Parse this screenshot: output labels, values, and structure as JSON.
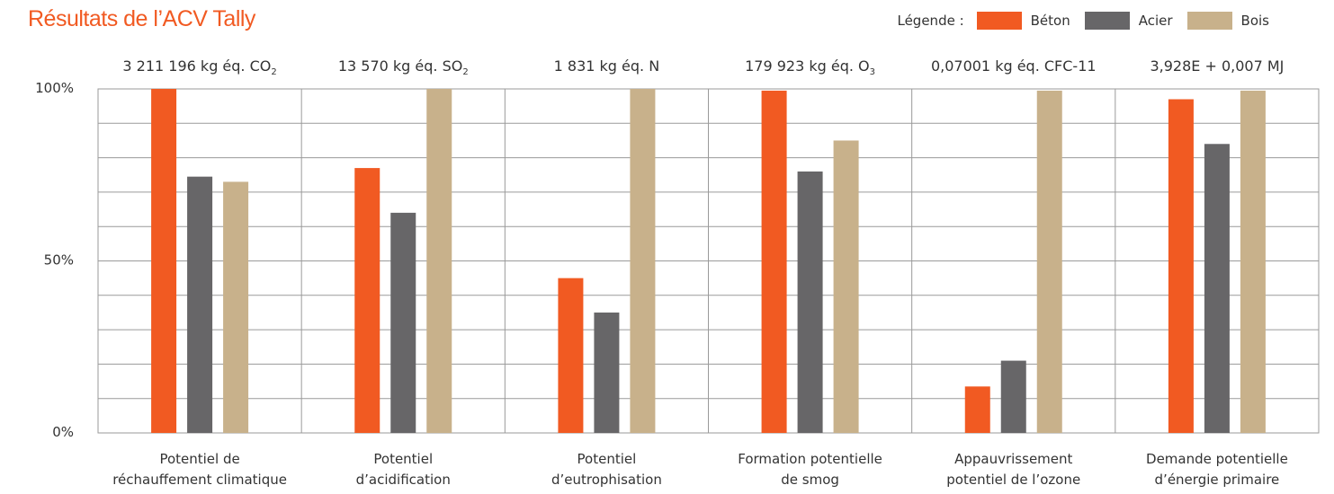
{
  "chart_data": {
    "type": "bar",
    "title": "Résultats de l’ACV Tally",
    "legend_label": "Légende :",
    "legend_position": "top-right",
    "yticks": [
      "100%",
      "50%",
      "0%"
    ],
    "ylim": [
      0,
      100
    ],
    "grid": true,
    "categories": [
      [
        "Potentiel de",
        "réchauffement climatique"
      ],
      [
        "Potentiel",
        "d’acidification"
      ],
      [
        "Potentiel",
        "d’eutrophisation"
      ],
      [
        "Formation potentielle",
        "de smog"
      ],
      [
        "Appauvrissement",
        "potentiel de l’ozone"
      ],
      [
        "Demande potentielle",
        "d’énergie primaire"
      ]
    ],
    "top_labels": [
      {
        "text": "3 211 196 kg éq. CO",
        "sub": "2"
      },
      {
        "text": "13 570 kg éq. SO",
        "sub": "2"
      },
      {
        "text": "1 831 kg éq. N",
        "sub": ""
      },
      {
        "text": "179 923 kg éq. O",
        "sub": "3"
      },
      {
        "text": "0,07001 kg éq. CFC-11",
        "sub": ""
      },
      {
        "text": "3,928E + 0,007 MJ",
        "sub": ""
      }
    ],
    "series": [
      {
        "name": "Béton",
        "color": "#F15A22",
        "values": [
          100,
          77,
          45,
          99.5,
          13.5,
          97
        ]
      },
      {
        "name": "Acier",
        "color": "#676668",
        "values": [
          74.5,
          64,
          35,
          76,
          21,
          84
        ]
      },
      {
        "name": "Bois",
        "color": "#C8B18B",
        "values": [
          73,
          100,
          100,
          85,
          99.5,
          99.5
        ]
      }
    ]
  }
}
